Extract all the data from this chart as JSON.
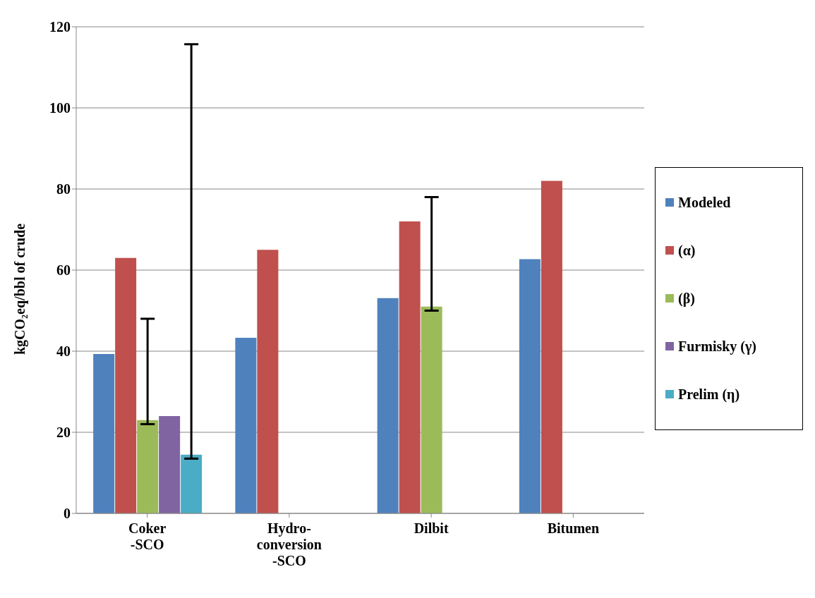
{
  "chart_data": {
    "type": "bar",
    "ylabel": "kgCO₂eq/bbl of crude",
    "categories": [
      "Coker\n-SCO",
      "Hydro-\nconversion\n-SCO",
      "Dilbit",
      "Bitumen"
    ],
    "ylim": [
      0,
      120
    ],
    "yticks": [
      0,
      20,
      40,
      60,
      80,
      100,
      120
    ],
    "grid": "y",
    "legend": "right",
    "series": [
      {
        "name": "Modeled",
        "color": "#4f81bd",
        "values": [
          39.3,
          43.3,
          53.1,
          62.7
        ]
      },
      {
        "name": "(α)",
        "color": "#c0504d",
        "values": [
          63,
          65,
          72,
          82
        ]
      },
      {
        "name": "(β)",
        "color": "#9bbb59",
        "values": [
          23,
          null,
          51,
          null
        ],
        "errors": [
          [
            22,
            48
          ],
          null,
          [
            50,
            78
          ],
          null
        ]
      },
      {
        "name": "Furmisky (γ)",
        "color": "#8064a2",
        "values": [
          24,
          null,
          null,
          null
        ]
      },
      {
        "name": "Prelim (η)",
        "color": "#4bacc6",
        "values": [
          14.5,
          null,
          null,
          null
        ],
        "errors": [
          [
            13.5,
            115.7
          ],
          null,
          null,
          null
        ]
      }
    ]
  }
}
